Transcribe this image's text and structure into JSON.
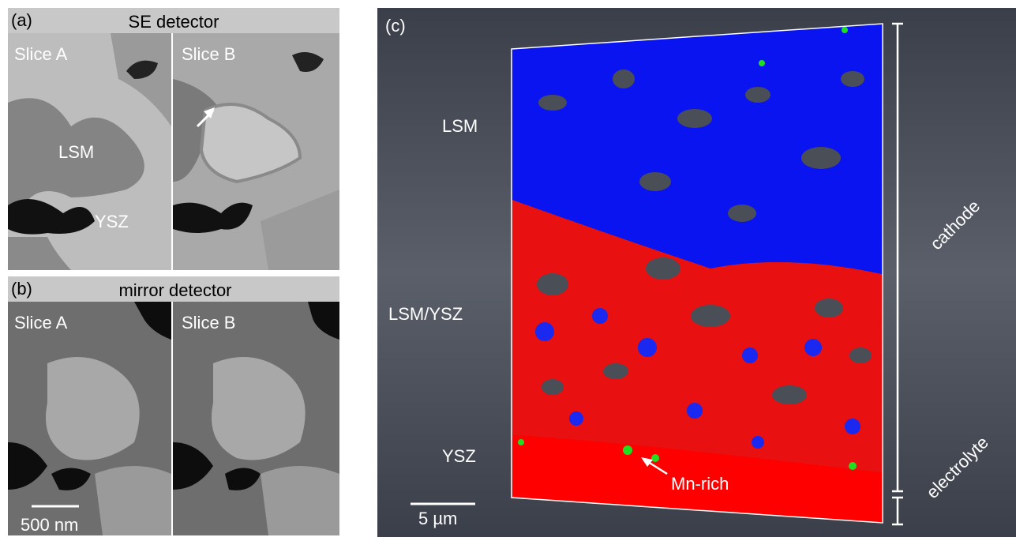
{
  "panel_a": {
    "label": "(a)",
    "title": "SE detector",
    "slice_left": "Slice A",
    "slice_right": "Slice B",
    "phase_1": "LSM",
    "phase_2": "YSZ"
  },
  "panel_b": {
    "label": "(b)",
    "title": "mirror detector",
    "slice_left": "Slice A",
    "slice_right": "Slice B",
    "scale_bar": "500 nm"
  },
  "panel_c": {
    "label": "(c)",
    "layer_top": "LSM",
    "layer_middle": "LSM/YSZ",
    "layer_bottom": "YSZ",
    "annotation": "Mn-rich",
    "scale_bar": "5 µm",
    "bracket_top": "cathode",
    "bracket_bottom": "electrolyte"
  }
}
